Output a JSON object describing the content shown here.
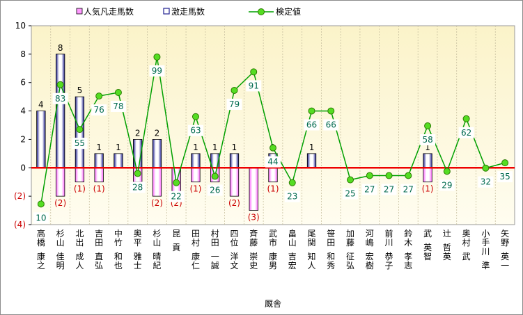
{
  "chart_data": {
    "type": "bar+line",
    "xlabel": "厩舎",
    "ylim": [
      -4,
      10
    ],
    "ytick_labels": [
      "10",
      "8",
      "6",
      "4",
      "2",
      "0",
      "(2)",
      "(4)"
    ],
    "legend": {
      "placement": "top",
      "items": [
        "人気凡走馬数",
        "激走馬数",
        "検定値"
      ]
    },
    "categories": [
      "高橋 康之",
      "杉山 佳明",
      "北出 成人",
      "吉田 直弘",
      "中竹 和也",
      "奥平 雅士",
      "杉山 晴紀",
      "昆 貢",
      "田村 康仁",
      "村田 一誠",
      "四位 洋文",
      "斉藤 崇史",
      "武市 康男",
      "畠山 吉宏",
      "尾関 知人",
      "笹田 和秀",
      "加藤 征弘",
      "河嶋 宏樹",
      "前川 恭子",
      "鈴木 孝志",
      "武 英智",
      "辻 哲英",
      "奥村 武",
      "小手川 準",
      "矢野 英一"
    ],
    "series": [
      {
        "name": "人気凡走馬数",
        "values": [
          0,
          -2,
          -1,
          -1,
          0,
          -1,
          -2,
          -2,
          -1,
          -1,
          -2,
          -3,
          -1,
          0,
          0,
          0,
          0,
          0,
          0,
          0,
          -1,
          0,
          0,
          0,
          0
        ],
        "labels": [
          "",
          "(2)",
          "(1)",
          "(1)",
          "",
          "(1)",
          "(2)",
          "(2)",
          "(1)",
          "(1)",
          "(2)",
          "(3)",
          "(1)",
          "",
          "",
          "",
          "",
          "",
          "",
          "",
          "(1)",
          "",
          "",
          "",
          ""
        ],
        "color": "#ff99ff"
      },
      {
        "name": "激走馬数",
        "values": [
          4,
          8,
          5,
          1,
          1,
          2,
          2,
          0,
          1,
          1,
          1,
          0,
          1,
          0,
          1,
          0,
          0,
          0,
          0,
          0,
          1,
          0,
          0,
          0,
          0
        ],
        "labels": [
          "4",
          "8",
          "5",
          "1",
          "1",
          "2",
          "2",
          "",
          "1",
          "1",
          "1",
          "",
          "1",
          "",
          "1",
          "",
          "",
          "",
          "",
          "",
          "1",
          "",
          "",
          "",
          ""
        ],
        "color": "#1f1f8f"
      },
      {
        "name": "検定値",
        "values": [
          -2.55,
          5.85,
          2.7,
          5.05,
          5.3,
          -0.4,
          7.8,
          -1.05,
          3.6,
          -0.6,
          5.45,
          6.75,
          1.4,
          -1.05,
          4.0,
          4.0,
          -0.85,
          -0.55,
          -0.55,
          -0.55,
          2.95,
          -0.25,
          3.45,
          -0.02,
          0.35
        ],
        "labels": [
          "10",
          "83",
          "55",
          "76",
          "78",
          "28",
          "99",
          "22",
          "63",
          "26",
          "79",
          "91",
          "44",
          "23",
          "66",
          "66",
          "25",
          "27",
          "27",
          "27",
          "58",
          "29",
          "62",
          "32",
          "35"
        ],
        "color": "#00a000"
      }
    ]
  }
}
